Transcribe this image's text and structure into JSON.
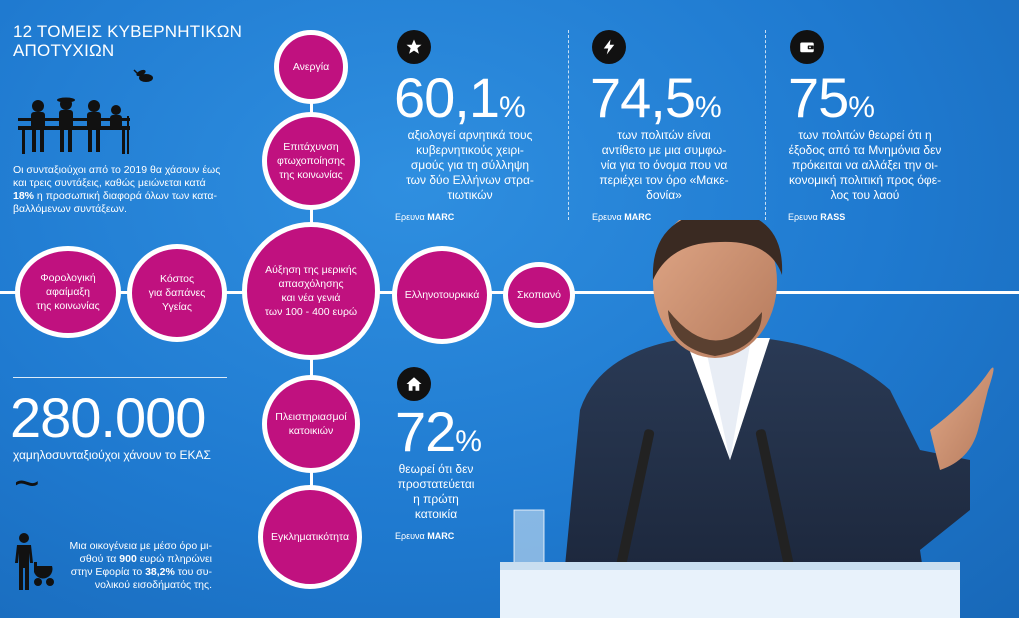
{
  "title": {
    "line1": "12 ΤΟΜΕΙΣ ΚΥΒΕΡΝΗΤΙΚΩΝ",
    "line2": "ΑΠΟΤΥΧΙΩΝ"
  },
  "pensioners_text": {
    "p1": "Οι συνταξιούχοι από το 2019 θα χάσουν έως",
    "p2": "και τρεις συντάξεις, καθώς μειώνεται κατά",
    "p3_bold": "18%",
    "p3": " η προσωπική διαφορά όλων των κατα-",
    "p4": "βαλλόμενων συντάξεων."
  },
  "bubbles": {
    "unemployment": "Ανεργία",
    "poverty": [
      "Επιτάχυνση",
      "φτωχοποίησης",
      "της κοινωνίας"
    ],
    "tax": [
      "Φορολογική",
      "αφαίμαξη",
      "της κοινωνίας"
    ],
    "health": [
      "Κόστος",
      "για δαπάνες",
      "Υγείας"
    ],
    "part_time": [
      "Αύξηση της μερικής",
      "απασχόλησης",
      "και νέα γενιά",
      "των 100 - 400 ευρώ"
    ],
    "greek_turkish": "Ελληνοτουρκικά",
    "skopje": "Σκοπιανό",
    "auctions": [
      "Πλειστηριασμοί",
      "κατοικιών"
    ],
    "crime": "Εγκληματικότητα"
  },
  "low_pension": {
    "number": "280.000",
    "caption": "χαμηλοσυνταξιούχοι χάνουν το ΕΚΑΣ",
    "tilde": "~"
  },
  "family_text": {
    "p1": "Μια οικογένεια με μέσο όρο μι-",
    "p2a": "σθού τα ",
    "p2_bold": "900",
    "p2b": " ευρώ πληρώνει",
    "p3a": "στην Εφορία το ",
    "p3_bold": "38,2%",
    "p3b": " του συ-",
    "p4": "νολικού εισοδήματός της."
  },
  "stats": [
    {
      "icon": "star-icon",
      "number": "60,1",
      "pct": "%",
      "lines": [
        "αξιολογεί αρνητικά τους",
        "κυβερνητικούς χειρι-",
        "σμούς για τη σύλληψη",
        "των δύο Ελλήνων στρα-",
        "τιωτικών"
      ],
      "source_label": "Ερευνα",
      "source_name": "MARC"
    },
    {
      "icon": "lightning-icon",
      "number": "74,5",
      "pct": "%",
      "lines": [
        "των πολιτών είναι",
        "αντίθετο με μια συμφω-",
        "νία για το όνομα που να",
        "περιέχει τον όρο «Μακε-",
        "δονία»"
      ],
      "source_label": "Ερευνα",
      "source_name": "MARC"
    },
    {
      "icon": "wallet-icon",
      "number": "75",
      "pct": "%",
      "lines": [
        "των πολιτών θεωρεί ότι η",
        "έξοδος από τα Μνημόνια δεν",
        "πρόκειται να αλλάξει την οι-",
        "κονομική πολιτική προς όφε-",
        "λος του λαού"
      ],
      "source_label": "Ερευνα",
      "source_name": "RASS"
    },
    {
      "icon": "home-icon",
      "number": "72",
      "pct": "%",
      "lines": [
        "θεωρεί ότι δεν",
        "προστατεύεται",
        "η πρώτη",
        "κατοικία"
      ],
      "source_label": "Ερευνα",
      "source_name": "MARC"
    }
  ],
  "colors": {
    "background": "#1f7ad0",
    "bubble": "#c0117f",
    "icon_bg": "#111111"
  }
}
